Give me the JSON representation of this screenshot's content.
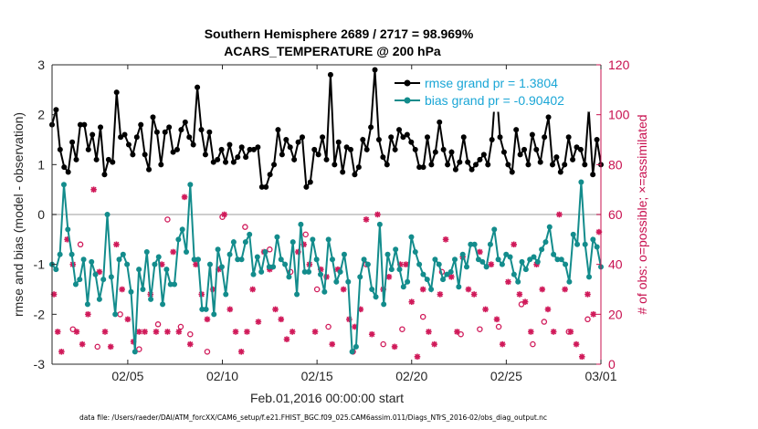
{
  "chart_data": {
    "type": "line",
    "title": "Southern Hemisphere 2689 / 2717 = 98.969%",
    "subtitle": "ACARS_TEMPERATURE @ 200 hPa",
    "xlabel": "Feb.01,2016 00:00:00 start",
    "ylabel": "rmse and bias (model - observation)",
    "y2label": "# of obs: o=possible; ×=assimilated",
    "xticks": [
      "02/05",
      "02/10",
      "02/15",
      "02/20",
      "02/25",
      "03/01"
    ],
    "xtick_days": [
      5,
      10,
      15,
      20,
      25,
      30
    ],
    "xlim_days": [
      1,
      30
    ],
    "ylim": [
      -3,
      3
    ],
    "yticks": [
      -3,
      -2,
      -1,
      0,
      1,
      2,
      3
    ],
    "y2lim": [
      0,
      120
    ],
    "y2ticks": [
      0,
      20,
      40,
      60,
      80,
      100,
      120
    ],
    "zero_line": 0,
    "legend_position": "top-right",
    "series": [
      {
        "name": "rmse grand pr = 1.3804",
        "color": "#000000",
        "axis": "left",
        "values": [
          1.8,
          2.1,
          1.3,
          0.95,
          0.85,
          1.45,
          1.1,
          1.8,
          1.8,
          1.3,
          1.6,
          1.1,
          1.75,
          0.8,
          1.1,
          1.05,
          2.45,
          1.55,
          1.6,
          1.4,
          1.2,
          1.55,
          1.8,
          1.2,
          0.9,
          1.95,
          1.65,
          1.0,
          1.65,
          1.75,
          1.25,
          1.3,
          1.7,
          1.85,
          1.55,
          1.4,
          2.55,
          1.7,
          1.2,
          1.65,
          1.05,
          1.1,
          1.3,
          1.05,
          1.4,
          1.05,
          1.15,
          1.35,
          1.15,
          1.3,
          1.3,
          1.35,
          0.55,
          0.55,
          0.8,
          1.0,
          1.7,
          1.2,
          1.5,
          1.35,
          1.1,
          1.45,
          1.55,
          0.55,
          0.65,
          1.3,
          1.2,
          1.55,
          1.1,
          2.8,
          1.0,
          1.45,
          0.85,
          1.35,
          1.3,
          0.8,
          0.95,
          1.5,
          1.3,
          1.75,
          2.9,
          1.5,
          1.15,
          1.0,
          1.55,
          1.3,
          1.7,
          1.55,
          1.6,
          1.45,
          1.3,
          0.95,
          0.95,
          1.55,
          1.0,
          1.25,
          1.85,
          1.3,
          1.0,
          1.25,
          0.9,
          1.05,
          1.55,
          1.05,
          0.9,
          1.0,
          1.1,
          1.2,
          1.0,
          1.5,
          2.65,
          1.55,
          1.25,
          1.0,
          0.85,
          1.7,
          1.2,
          1.3,
          1.0,
          1.6,
          1.3,
          1.05,
          1.55,
          1.95,
          1.0,
          1.15,
          0.85,
          1.0,
          1.55,
          1.1,
          1.35,
          1.3,
          1.0,
          2.1,
          0.8,
          1.5,
          1.0
        ]
      },
      {
        "name": "bias grand pr = -0.90402",
        "color": "#138c8c",
        "axis": "left",
        "values": [
          -1.0,
          -1.1,
          -0.8,
          0.6,
          -0.3,
          -0.8,
          -1.4,
          -1.3,
          -0.9,
          -1.8,
          -0.95,
          -1.2,
          -1.7,
          -1.3,
          0.0,
          -1.25,
          -2.0,
          -0.9,
          -0.8,
          -1.0,
          -1.55,
          -2.75,
          -1.1,
          -1.5,
          -0.75,
          -1.7,
          -1.0,
          -0.85,
          -1.8,
          -1.1,
          -1.4,
          -1.4,
          -0.5,
          -0.3,
          -0.75,
          0.6,
          -0.9,
          -0.9,
          -1.9,
          -1.9,
          -1.0,
          -2.0,
          -0.7,
          -1.05,
          -1.6,
          -0.8,
          -0.55,
          -0.9,
          -0.9,
          -0.55,
          -0.4,
          -1.2,
          -0.85,
          -1.15,
          -0.75,
          -1.05,
          -1.05,
          -0.45,
          -0.9,
          -1.0,
          -1.25,
          -0.55,
          -1.6,
          -0.2,
          -1.15,
          -1.15,
          -0.5,
          -0.9,
          -1.2,
          -1.55,
          -0.5,
          -0.9,
          -1.35,
          -1.15,
          -0.8,
          -1.35,
          -2.75,
          -2.65,
          -1.25,
          -0.9,
          -1.0,
          -1.5,
          -1.65,
          -0.2,
          -1.8,
          -0.8,
          -1.1,
          -0.7,
          -1.1,
          -1.45,
          -1.35,
          -0.45,
          -0.75,
          -1.0,
          -1.2,
          -1.3,
          -1.5,
          -0.9,
          -1.0,
          -1.3,
          -1.2,
          -1.15,
          -0.9,
          -1.45,
          -0.8,
          -1.05,
          -0.6,
          -0.6,
          -0.9,
          -0.95,
          -1.05,
          -0.6,
          -0.3,
          -0.9,
          -1.0,
          -0.8,
          -0.85,
          -1.2,
          -1.35,
          -0.95,
          -1.1,
          -0.9,
          -0.85,
          -0.95,
          -0.7,
          -0.55,
          -0.25,
          -0.8,
          -0.9,
          -0.9,
          -1.0,
          -1.35,
          -0.4,
          -0.6,
          0.65,
          -0.6,
          -1.25,
          -0.5,
          -0.65,
          -1.05
        ]
      }
    ],
    "obs_possible": {
      "name": "possible",
      "marker": "o",
      "color": "#d01a5a",
      "axis": "right",
      "days": [
        2.1,
        2.5,
        3.4,
        4.6,
        5.6,
        6.6,
        7.1,
        7.8,
        8.3,
        9.2,
        10.0,
        11.2,
        12.5,
        13.6,
        14.4,
        15.0,
        15.6,
        16.9,
        17.6,
        18.5,
        19.5,
        20.6,
        21.6,
        22.6,
        23.6,
        24.6,
        25.8,
        26.4,
        27.0,
        28.3,
        29.3
      ],
      "values": [
        14,
        48,
        7,
        20,
        6,
        16,
        58,
        15,
        12,
        5,
        59,
        55,
        46,
        37,
        52,
        30,
        15,
        5,
        40,
        8,
        14,
        19,
        37,
        12,
        14,
        15,
        24,
        8,
        17,
        13,
        18
      ]
    },
    "obs_assimilated": {
      "name": "assimilated",
      "marker": "*",
      "color": "#d01a5a",
      "axis": "right",
      "days": [
        1.1,
        1.3,
        1.5,
        1.8,
        2.1,
        2.3,
        2.6,
        2.9,
        3.2,
        3.5,
        3.8,
        4.1,
        4.4,
        4.7,
        5.0,
        5.3,
        5.6,
        5.9,
        6.2,
        6.5,
        6.8,
        7.1,
        7.4,
        7.7,
        8.0,
        8.3,
        8.6,
        8.9,
        9.2,
        9.5,
        9.8,
        10.1,
        10.4,
        10.7,
        11.0,
        11.3,
        11.6,
        11.9,
        12.2,
        12.5,
        12.8,
        13.1,
        13.4,
        13.7,
        14.0,
        14.3,
        14.6,
        14.9,
        15.2,
        15.5,
        15.8,
        16.1,
        16.4,
        16.7,
        17.0,
        17.3,
        17.6,
        17.9,
        18.2,
        18.5,
        18.8,
        19.1,
        19.4,
        19.7,
        20.0,
        20.3,
        20.6,
        20.9,
        21.2,
        21.5,
        21.8,
        22.1,
        22.4,
        22.7,
        23.0,
        23.3,
        23.6,
        23.9,
        24.2,
        24.5,
        24.8,
        25.1,
        25.4,
        25.7,
        26.0,
        26.3,
        26.6,
        26.9,
        27.2,
        27.5,
        27.8,
        28.1,
        28.4,
        28.7,
        29.0,
        29.3,
        29.6,
        29.9
      ],
      "values": [
        28,
        13,
        5,
        50,
        40,
        13,
        8,
        20,
        70,
        37,
        13,
        7,
        48,
        30,
        18,
        9,
        13,
        13,
        28,
        13,
        40,
        13,
        45,
        13,
        67,
        8,
        40,
        28,
        18,
        30,
        38,
        60,
        22,
        13,
        5,
        13,
        30,
        17,
        45,
        38,
        22,
        18,
        10,
        13,
        45,
        48,
        40,
        13,
        38,
        35,
        8,
        38,
        30,
        18,
        15,
        22,
        58,
        12,
        60,
        30,
        35,
        7,
        40,
        40,
        25,
        3,
        30,
        13,
        8,
        28,
        50,
        35,
        13,
        43,
        30,
        28,
        45,
        22,
        40,
        18,
        8,
        33,
        48,
        28,
        25,
        13,
        40,
        30,
        22,
        13,
        60,
        30,
        13,
        8,
        3,
        28,
        20,
        53
      ]
    }
  },
  "footer": "data file: /Users/raeder/DAI/ATM_forcXX/CAM6_setup/f.e21.FHIST_BGC.f09_025.CAM6assim.011/Diags_NTrS_2016-02/obs_diag_output.nc"
}
